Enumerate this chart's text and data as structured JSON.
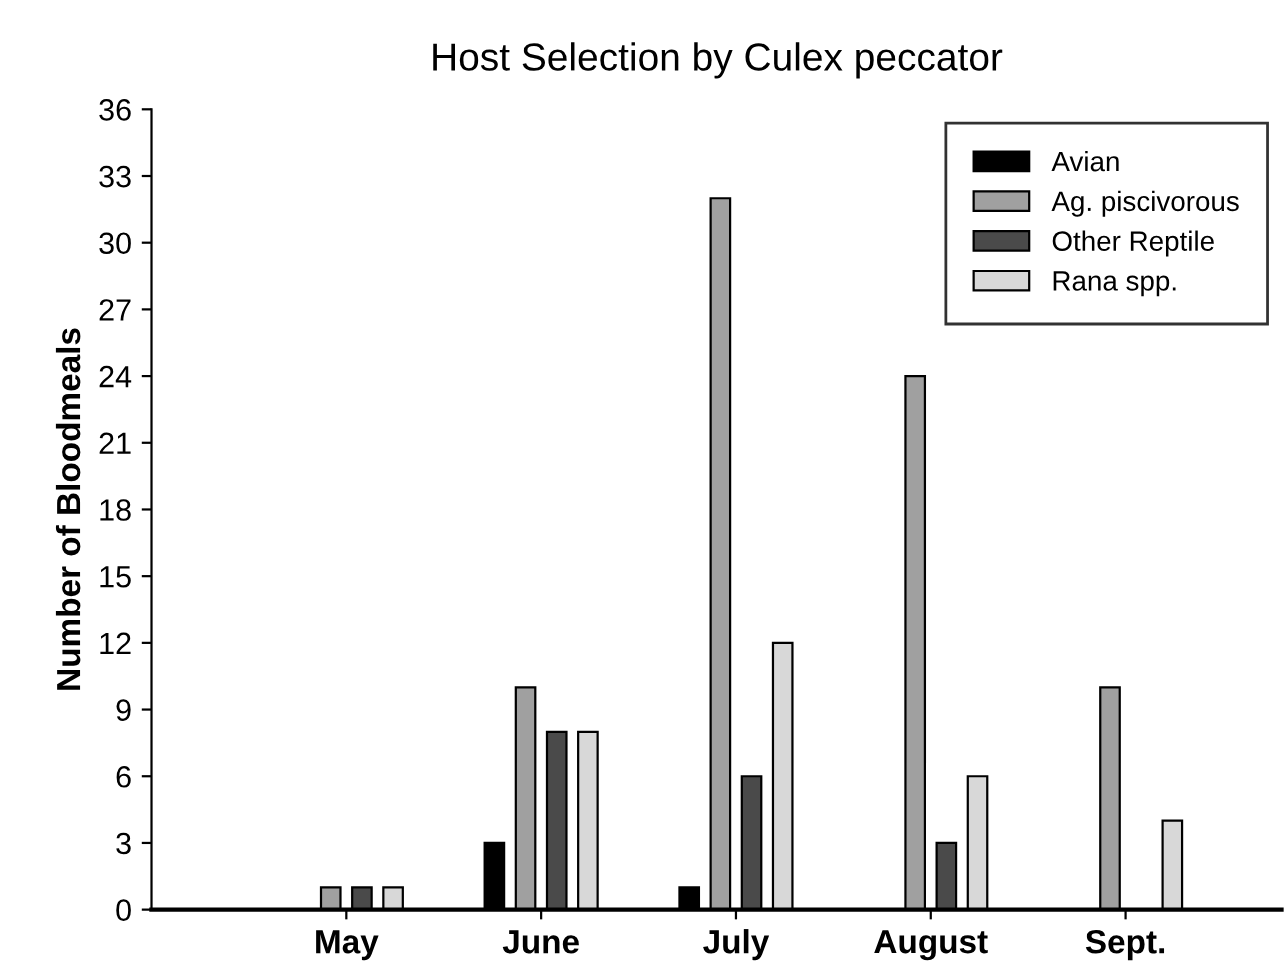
{
  "chart_data": {
    "type": "bar",
    "title": "Host Selection by Culex peccator",
    "ylabel": "Number of Bloodmeals",
    "categories": [
      "May",
      "June",
      "July",
      "August",
      "Sept."
    ],
    "series": [
      {
        "name": "Avian",
        "color": "#000000",
        "values": [
          0,
          3,
          1,
          0,
          0
        ]
      },
      {
        "name": "Ag. piscivorous",
        "color": "#a0a0a0",
        "values": [
          1,
          10,
          32,
          24,
          10
        ]
      },
      {
        "name": "Other Reptile",
        "color": "#4a4a4a",
        "values": [
          1,
          8,
          6,
          3,
          0
        ]
      },
      {
        "name": "Rana spp.",
        "color": "#d8d8d8",
        "values": [
          1,
          8,
          12,
          6,
          4
        ]
      }
    ],
    "ylim": [
      0,
      36
    ],
    "yticks": [
      0,
      3,
      6,
      9,
      12,
      15,
      18,
      21,
      24,
      27,
      30,
      33,
      36
    ],
    "grid": false,
    "legend": "top right"
  }
}
